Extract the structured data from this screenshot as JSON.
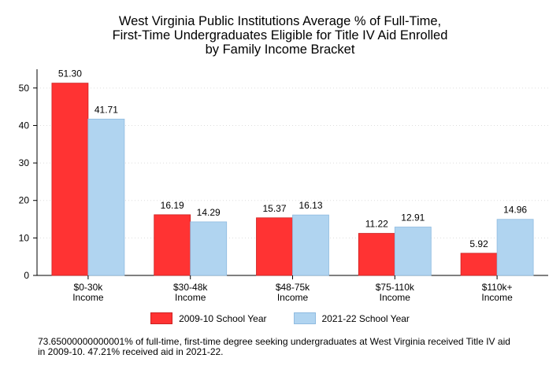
{
  "chart_data": {
    "type": "bar",
    "title_lines": [
      "West Virginia Public Institutions Average % of Full-Time,",
      "First-Time Undergraduates Eligible for Title IV Aid Enrolled",
      "by Family Income Bracket"
    ],
    "categories": [
      [
        "$0-30k",
        "Income"
      ],
      [
        "$30-48k",
        "Income"
      ],
      [
        "$48-75k",
        "Income"
      ],
      [
        "$75-110k",
        "Income"
      ],
      [
        "$110k+",
        "Income"
      ]
    ],
    "series": [
      {
        "name": "2009-10 School Year",
        "color": "#ff3333",
        "values": [
          51.3,
          16.19,
          15.37,
          11.22,
          5.92
        ],
        "labels": [
          "51.30",
          "16.19",
          "15.37",
          "11.22",
          "5.92"
        ]
      },
      {
        "name": "2021-22 School Year",
        "color": "#b0d4f0",
        "values": [
          41.71,
          14.29,
          16.13,
          12.91,
          14.96
        ],
        "labels": [
          "41.71",
          "14.29",
          "16.13",
          "12.91",
          "14.96"
        ]
      }
    ],
    "ylim": [
      0,
      55
    ],
    "yticks": [
      0,
      10,
      20,
      30,
      40,
      50
    ],
    "grid": true,
    "legend_position": "bottom"
  },
  "footnote_lines": [
    "73.65000000000001% of full-time, first-time degree seeking undergraduates at West Virginia received Title IV aid",
    "in 2009-10. 47.21% received aid in 2021-22."
  ]
}
